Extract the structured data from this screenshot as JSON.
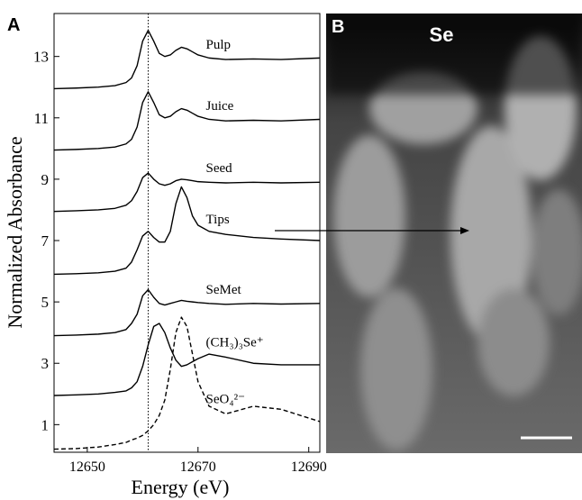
{
  "chart_data": {
    "type": "line",
    "panel_label": "A",
    "xlabel": "Energy (eV)",
    "ylabel": "Normalized Absorbance",
    "x": [
      12644,
      12648,
      12652,
      12655,
      12657,
      12658,
      12659,
      12660,
      12661,
      12662,
      12663,
      12664,
      12665,
      12666,
      12667,
      12668,
      12669,
      12670,
      12672,
      12675,
      12680,
      12685,
      12692
    ],
    "series": [
      {
        "name": "Pulp",
        "color": "#000000",
        "dash": false,
        "values": [
          11.95,
          11.97,
          12.0,
          12.05,
          12.15,
          12.3,
          12.7,
          13.5,
          13.85,
          13.5,
          13.1,
          13.0,
          13.05,
          13.2,
          13.3,
          13.25,
          13.15,
          13.05,
          12.95,
          12.9,
          12.92,
          12.9,
          12.95
        ]
      },
      {
        "name": "Juice",
        "color": "#000000",
        "dash": false,
        "values": [
          9.95,
          9.97,
          10.0,
          10.05,
          10.15,
          10.3,
          10.7,
          11.5,
          11.85,
          11.5,
          11.1,
          11.0,
          11.05,
          11.2,
          11.3,
          11.25,
          11.15,
          11.05,
          10.95,
          10.9,
          10.92,
          10.9,
          10.95
        ]
      },
      {
        "name": "Seed",
        "color": "#000000",
        "dash": false,
        "values": [
          7.95,
          7.97,
          8.0,
          8.05,
          8.15,
          8.3,
          8.6,
          9.05,
          9.2,
          9.0,
          8.85,
          8.8,
          8.85,
          8.95,
          9.0,
          8.98,
          8.95,
          8.92,
          8.9,
          8.88,
          8.9,
          8.88,
          8.9
        ]
      },
      {
        "name": "Tips",
        "color": "#000000",
        "dash": false,
        "values": [
          5.9,
          5.92,
          5.95,
          6.0,
          6.1,
          6.3,
          6.7,
          7.15,
          7.3,
          7.1,
          6.95,
          6.95,
          7.3,
          8.2,
          8.75,
          8.4,
          7.8,
          7.5,
          7.3,
          7.2,
          7.1,
          7.05,
          7.0
        ]
      },
      {
        "name": "SeMet",
        "color": "#000000",
        "dash": false,
        "values": [
          3.9,
          3.92,
          3.95,
          4.0,
          4.1,
          4.3,
          4.6,
          5.2,
          5.4,
          5.15,
          4.95,
          4.9,
          4.95,
          5.0,
          5.05,
          5.02,
          5.0,
          4.98,
          4.95,
          4.92,
          4.95,
          4.93,
          4.95
        ]
      },
      {
        "name": "(CH₃)₃Se⁺",
        "color": "#000000",
        "dash": false,
        "values": [
          1.95,
          1.97,
          2.0,
          2.05,
          2.1,
          2.2,
          2.4,
          2.9,
          3.6,
          4.2,
          4.3,
          4.0,
          3.5,
          3.1,
          2.9,
          2.95,
          3.05,
          3.15,
          3.3,
          3.2,
          3.0,
          2.95,
          2.95
        ]
      },
      {
        "name": "SeO₄²⁻",
        "color": "#000000",
        "dash": true,
        "values": [
          0.2,
          0.22,
          0.27,
          0.35,
          0.42,
          0.5,
          0.56,
          0.65,
          0.8,
          1.0,
          1.3,
          1.8,
          2.8,
          4.0,
          4.5,
          4.2,
          3.3,
          2.4,
          1.6,
          1.35,
          1.6,
          1.5,
          1.1
        ]
      }
    ],
    "xlim": [
      12644,
      12692
    ],
    "xticks": [
      12650,
      12670,
      12690
    ],
    "ylim": [
      0.1,
      14.4
    ],
    "yticks": [
      1,
      3,
      5,
      7,
      9,
      11,
      13
    ],
    "vline": 12661
  },
  "image_panel": {
    "panel_label": "B",
    "title": "Se"
  }
}
